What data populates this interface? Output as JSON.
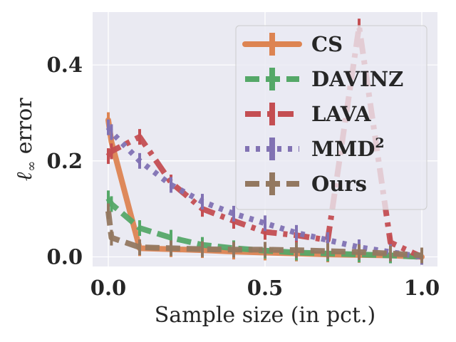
{
  "chart_data": {
    "type": "line",
    "xlabel": "Sample size (in pct.)",
    "ylabel_symbol": "ℓ",
    "ylabel_subscript": "∞",
    "ylabel_text": "error",
    "xlim": [
      -0.05,
      1.05
    ],
    "ylim": [
      -0.02,
      0.51
    ],
    "xticks": [
      0.0,
      0.5,
      1.0
    ],
    "xtick_labels": [
      "0.0",
      "0.5",
      "1.0"
    ],
    "yticks": [
      0.0,
      0.2,
      0.4
    ],
    "ytick_labels": [
      "0.0",
      "0.2",
      "0.4"
    ],
    "grid": true,
    "legend_position": "top-right",
    "series": [
      {
        "name": "CS",
        "legend_label": "CS",
        "color": "#dd8452",
        "linestyle": "solid",
        "x": [
          0.0,
          0.01,
          0.1,
          0.2,
          0.3,
          0.4,
          0.5,
          0.6,
          0.7,
          0.8,
          0.9,
          1.0
        ],
        "y": [
          0.285,
          0.24,
          0.018,
          0.016,
          0.014,
          0.011,
          0.009,
          0.007,
          0.005,
          0.004,
          0.003,
          0.0
        ]
      },
      {
        "name": "DAVINZ",
        "legend_label": "DAVINZ",
        "color": "#55a868",
        "linestyle": "dashed",
        "x": [
          0.0,
          0.01,
          0.1,
          0.2,
          0.3,
          0.4,
          0.5,
          0.6,
          0.7,
          0.8,
          0.9,
          1.0
        ],
        "y": [
          0.122,
          0.11,
          0.06,
          0.04,
          0.025,
          0.018,
          0.013,
          0.009,
          0.007,
          0.005,
          0.003,
          0.0
        ]
      },
      {
        "name": "LAVA",
        "legend_label": "LAVA",
        "color": "#c44e52",
        "linestyle": "dashdot",
        "x": [
          0.0,
          0.01,
          0.1,
          0.2,
          0.3,
          0.4,
          0.5,
          0.6,
          0.7,
          0.8,
          0.9,
          1.0
        ],
        "y": [
          0.21,
          0.22,
          0.25,
          0.155,
          0.1,
          0.075,
          0.052,
          0.045,
          0.035,
          0.48,
          0.03,
          0.0
        ]
      },
      {
        "name": "MMD2",
        "legend_label": "MMD",
        "legend_superscript": "2",
        "color": "#8172b3",
        "linestyle": "dotted",
        "x": [
          0.0,
          0.01,
          0.1,
          0.2,
          0.3,
          0.4,
          0.5,
          0.6,
          0.7,
          0.8,
          0.9,
          1.0
        ],
        "y": [
          0.27,
          0.26,
          0.2,
          0.15,
          0.115,
          0.09,
          0.07,
          0.05,
          0.035,
          0.02,
          0.01,
          0.0
        ]
      },
      {
        "name": "Ours",
        "legend_label": "Ours",
        "color": "#937860",
        "linestyle": "dashed",
        "x": [
          0.0,
          0.01,
          0.1,
          0.2,
          0.3,
          0.4,
          0.5,
          0.6,
          0.7,
          0.8,
          0.9,
          1.0
        ],
        "y": [
          0.095,
          0.04,
          0.02,
          0.018,
          0.016,
          0.015,
          0.015,
          0.014,
          0.012,
          0.01,
          0.007,
          0.003
        ]
      }
    ]
  }
}
